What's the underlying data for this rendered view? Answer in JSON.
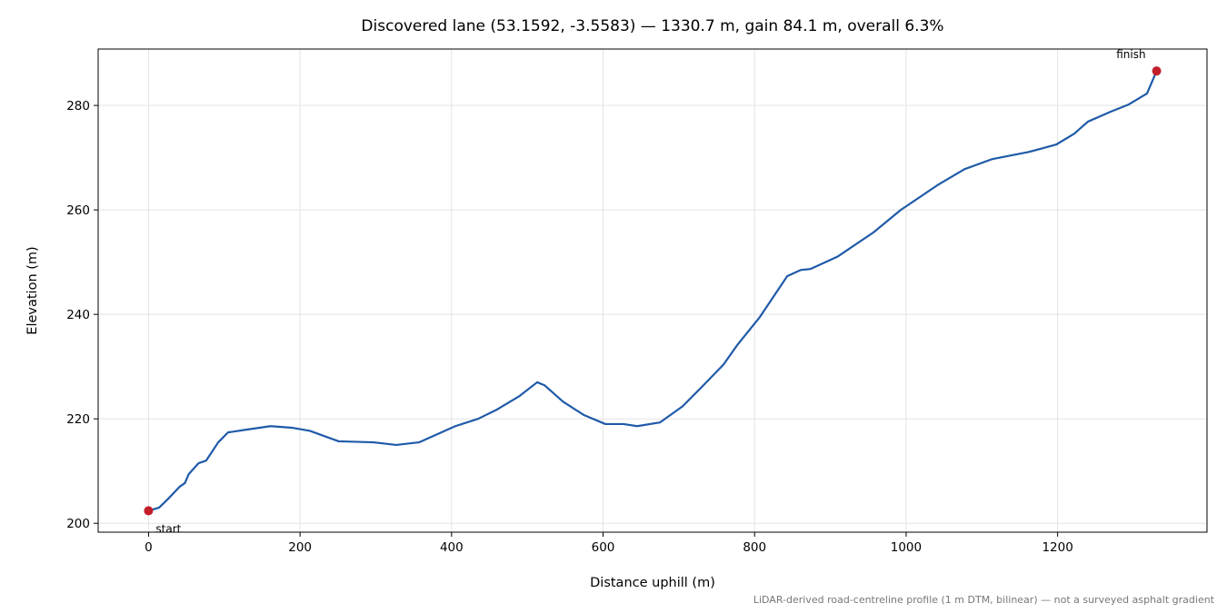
{
  "chart_data": {
    "type": "line",
    "title": "Discovered lane (53.1592, -3.5583) — 1330.7 m, gain 84.1 m, overall 6.3%",
    "x_label": "Distance uphill (m)",
    "y_label": "Elevation (m)",
    "footnote": "LiDAR-derived road-centreline profile (1 m DTM, bilinear) — not a surveyed asphalt gradient",
    "xlim": [
      -66.5,
      1397.2
    ],
    "ylim": [
      198.3,
      290.8
    ],
    "xticks": [
      0,
      200,
      400,
      600,
      800,
      1000,
      1200
    ],
    "yticks": [
      200,
      220,
      240,
      260,
      280
    ],
    "grid": true,
    "x": [
      0,
      14,
      26,
      41,
      48,
      53,
      66,
      76,
      92,
      105,
      128,
      161,
      189,
      213,
      251,
      297,
      327,
      357,
      405,
      435,
      459,
      489,
      513,
      523,
      547,
      575,
      603,
      627,
      645,
      675,
      705,
      729,
      759,
      777,
      807,
      831,
      843,
      861,
      874,
      910,
      957,
      993,
      1041,
      1077,
      1113,
      1162,
      1198,
      1222,
      1240,
      1270,
      1294,
      1318,
      1330.7
    ],
    "series": [
      {
        "name": "Elevation",
        "color": "#1f5aa8",
        "values": [
          202.4,
          203.0,
          204.7,
          207.0,
          207.7,
          209.4,
          211.5,
          212.0,
          215.5,
          217.4,
          217.9,
          218.6,
          218.3,
          217.7,
          215.7,
          215.5,
          215.0,
          215.5,
          218.6,
          220.0,
          221.7,
          224.3,
          227.0,
          226.4,
          223.3,
          220.7,
          219.0,
          219.0,
          218.6,
          219.3,
          222.4,
          225.9,
          230.4,
          234.1,
          239.5,
          244.7,
          247.3,
          248.5,
          248.7,
          251.1,
          255.7,
          260.0,
          264.7,
          267.8,
          269.7,
          271.1,
          272.5,
          274.6,
          276.9,
          278.8,
          280.2,
          282.3,
          286.6
        ]
      }
    ],
    "annotations": [
      {
        "text": "start",
        "x": 0,
        "y": 202.4
      },
      {
        "text": "finish",
        "x": 1330.7,
        "y": 286.6
      }
    ],
    "marker_color": "#c41e2a"
  }
}
